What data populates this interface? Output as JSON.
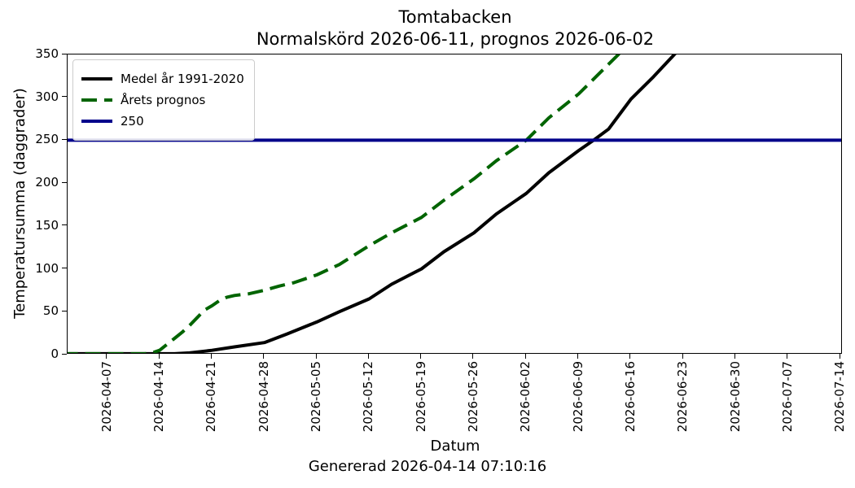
{
  "header": {
    "line1": "Tomtabacken",
    "line2": "Normalskörd 2026-06-11, prognos 2026-06-02"
  },
  "footer": "Genererad 2026-04-14 07:10:16",
  "chart_data": {
    "type": "line",
    "title": "Tomtabacken\nNormalskörd 2026-06-11, prognos 2026-06-02",
    "xlabel": "Datum",
    "ylabel": "Temperatursumma (daggrader)",
    "legend_position": "upper left",
    "grid": false,
    "ylim": [
      0,
      350
    ],
    "y_ticks": [
      0,
      50,
      100,
      150,
      200,
      250,
      300,
      350
    ],
    "x_epoch": "2026-04-01",
    "x_range_days": [
      0.7,
      104.3
    ],
    "x_tick_labels": [
      "2026-04-07",
      "2026-04-14",
      "2026-04-21",
      "2026-04-28",
      "2026-05-05",
      "2026-05-12",
      "2026-05-19",
      "2026-05-26",
      "2026-06-02",
      "2026-06-09",
      "2026-06-16",
      "2026-06-23",
      "2026-06-30",
      "2026-07-07",
      "2026-07-14"
    ],
    "series": [
      {
        "name": "Medel år 1991-2020",
        "color": "#000000",
        "style": "solid",
        "points": [
          [
            "2026-04-01",
            1
          ],
          [
            "2026-04-10",
            1
          ],
          [
            "2026-04-14",
            1
          ],
          [
            "2026-04-16",
            1
          ],
          [
            "2026-04-18",
            2
          ],
          [
            "2026-04-21",
            5
          ],
          [
            "2026-04-24",
            9
          ],
          [
            "2026-04-28",
            14
          ],
          [
            "2026-05-01",
            24
          ],
          [
            "2026-05-05",
            38
          ],
          [
            "2026-05-08",
            50
          ],
          [
            "2026-05-12",
            65
          ],
          [
            "2026-05-15",
            82
          ],
          [
            "2026-05-19",
            100
          ],
          [
            "2026-05-22",
            120
          ],
          [
            "2026-05-26",
            142
          ],
          [
            "2026-05-29",
            164
          ],
          [
            "2026-06-02",
            188
          ],
          [
            "2026-06-05",
            212
          ],
          [
            "2026-06-09",
            238
          ],
          [
            "2026-06-11",
            250
          ],
          [
            "2026-06-13",
            263
          ],
          [
            "2026-06-16",
            298
          ],
          [
            "2026-06-19",
            324
          ],
          [
            "2026-06-22",
            352
          ],
          [
            "2026-06-23",
            364
          ]
        ]
      },
      {
        "name": "Årets prognos",
        "color": "#006400",
        "style": "dashed",
        "points": [
          [
            "2026-04-01",
            1
          ],
          [
            "2026-04-07",
            1
          ],
          [
            "2026-04-12",
            1
          ],
          [
            "2026-04-13",
            2
          ],
          [
            "2026-04-14",
            5
          ],
          [
            "2026-04-15",
            12
          ],
          [
            "2026-04-16",
            19
          ],
          [
            "2026-04-17",
            26
          ],
          [
            "2026-04-18",
            34
          ],
          [
            "2026-04-19",
            43
          ],
          [
            "2026-04-20",
            52
          ],
          [
            "2026-04-21",
            57
          ],
          [
            "2026-04-22",
            63
          ],
          [
            "2026-04-23",
            67
          ],
          [
            "2026-04-24",
            69
          ],
          [
            "2026-04-26",
            71
          ],
          [
            "2026-04-28",
            75
          ],
          [
            "2026-04-30",
            80
          ],
          [
            "2026-05-02",
            84
          ],
          [
            "2026-05-05",
            93
          ],
          [
            "2026-05-08",
            105
          ],
          [
            "2026-05-12",
            127
          ],
          [
            "2026-05-15",
            142
          ],
          [
            "2026-05-19",
            160
          ],
          [
            "2026-05-22",
            180
          ],
          [
            "2026-05-26",
            205
          ],
          [
            "2026-05-29",
            226
          ],
          [
            "2026-06-02",
            250
          ],
          [
            "2026-06-05",
            276
          ],
          [
            "2026-06-09",
            304
          ],
          [
            "2026-06-12",
            330
          ],
          [
            "2026-06-15",
            356
          ]
        ]
      },
      {
        "name": "250",
        "color": "#00008b",
        "style": "solid",
        "points": [
          [
            "2026-04-01",
            250
          ],
          [
            "2026-07-15",
            250
          ]
        ]
      }
    ]
  }
}
